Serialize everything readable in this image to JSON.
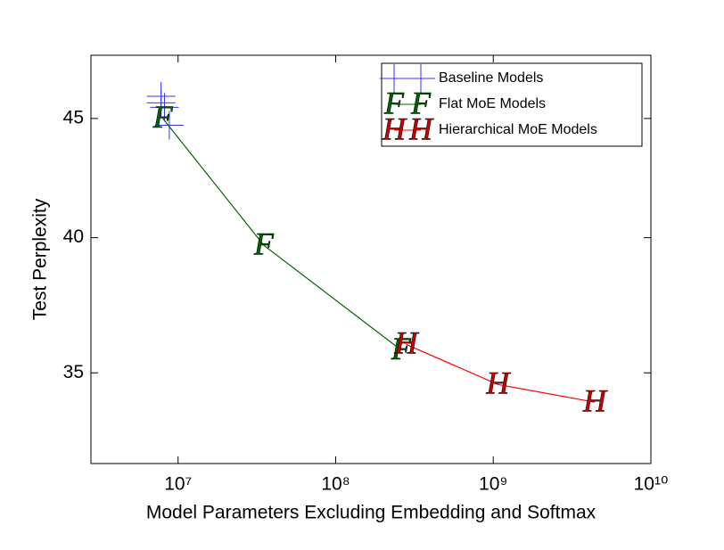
{
  "chart_data": {
    "type": "line",
    "xlabel": "Model Parameters Excluding Embedding and Softmax",
    "ylabel": "Test Perplexity",
    "xscale": "log",
    "yscale": "log",
    "xlim": [
      2800000,
      10000000000
    ],
    "ylim": [
      32,
      47.9
    ],
    "xticks": [
      {
        "value": 10000000,
        "label": "10⁷"
      },
      {
        "value": 100000000,
        "label": "10⁸"
      },
      {
        "value": 1000000000,
        "label": "10⁹"
      },
      {
        "value": 10000000000,
        "label": "10¹⁰"
      }
    ],
    "yticks": [
      35,
      40,
      45
    ],
    "legend": "upper right",
    "series": [
      {
        "name": "Baseline Models",
        "color": "#3333ff",
        "marker": "+",
        "line": false,
        "x": [
          7800000,
          7800000,
          8200000,
          8800000
        ],
        "values": [
          46.0,
          45.7,
          45.5,
          44.7
        ]
      },
      {
        "name": "Flat MoE Models",
        "color": "#006400",
        "marker": "F",
        "line": true,
        "x": [
          8000000,
          35000000,
          260000000
        ],
        "values": [
          45.0,
          39.7,
          35.8
        ]
      },
      {
        "name": "Hierarchical MoE Models",
        "color": "#cc0000",
        "linecolor": "#ff0000",
        "marker": "H",
        "line": true,
        "x": [
          280000000,
          1070000000,
          4400000000
        ],
        "values": [
          36.0,
          34.6,
          34.0
        ]
      }
    ]
  }
}
